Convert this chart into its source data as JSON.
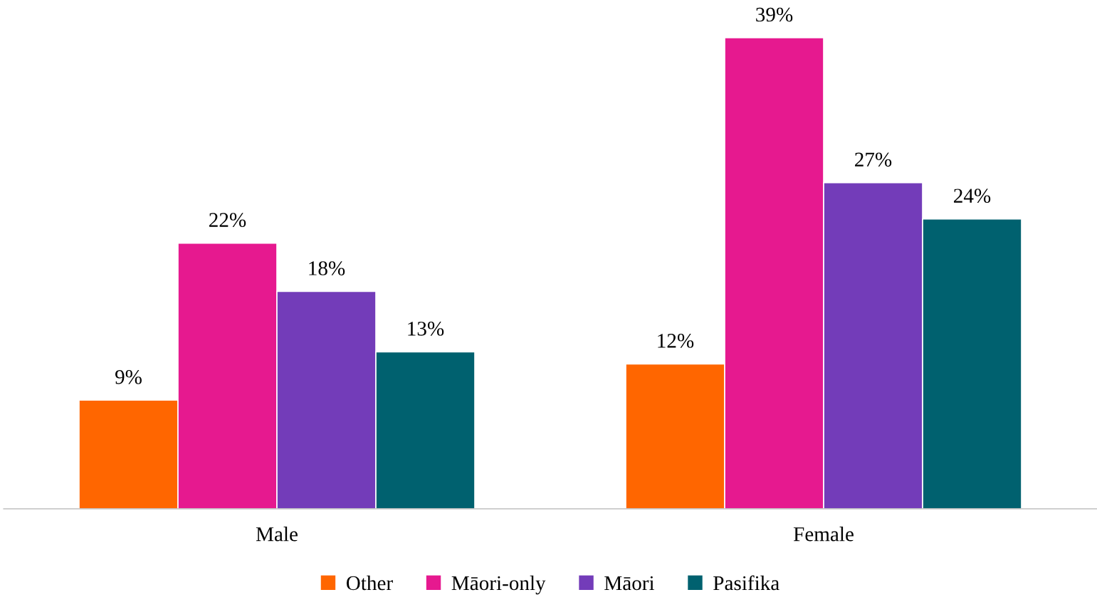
{
  "chart_data": {
    "type": "bar",
    "categories": [
      "Male",
      "Female"
    ],
    "series": [
      {
        "name": "Other",
        "color": "#ff6600",
        "values": [
          9,
          12
        ],
        "value_labels": [
          "9%",
          "12%"
        ]
      },
      {
        "name": "Māori-only",
        "color": "#e6198f",
        "values": [
          22,
          39
        ],
        "value_labels": [
          "22%",
          "39%"
        ]
      },
      {
        "name": "Māori",
        "color": "#733cb9",
        "values": [
          18,
          27
        ],
        "value_labels": [
          "18%",
          "27%"
        ]
      },
      {
        "name": "Pasifika",
        "color": "#00616f",
        "values": [
          13,
          24
        ],
        "value_labels": [
          "13%",
          "24%"
        ]
      }
    ],
    "legend": "bottom",
    "grid": false
  }
}
